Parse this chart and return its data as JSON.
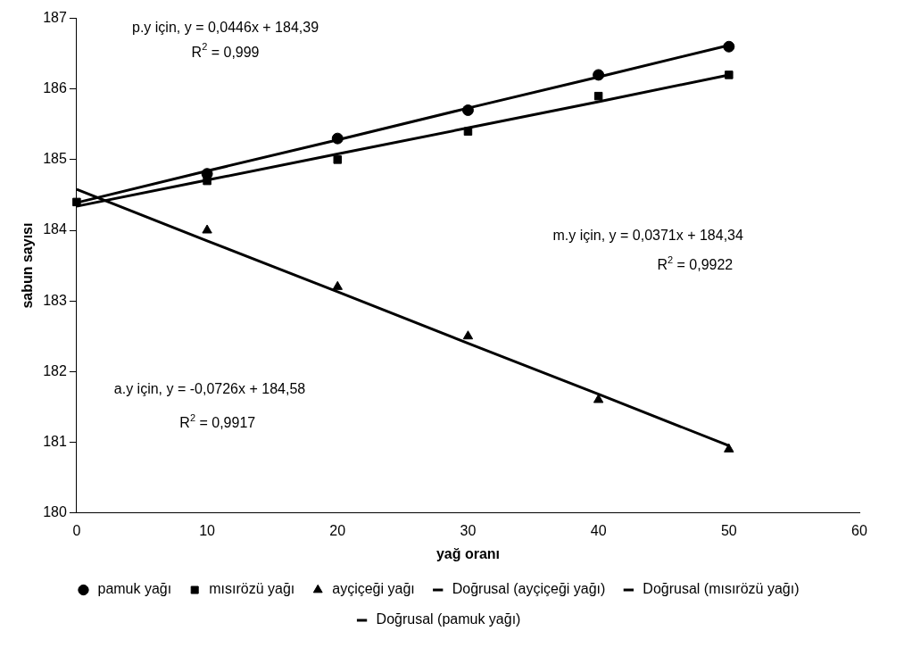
{
  "chart_data": {
    "type": "scatter",
    "xlabel": "yağ oranı",
    "ylabel": "sabun sayısı",
    "xlim": [
      0,
      60
    ],
    "xticks": [
      0,
      10,
      20,
      30,
      40,
      50,
      60
    ],
    "ylim": [
      180,
      187
    ],
    "yticks": [
      180,
      181,
      182,
      183,
      184,
      185,
      186,
      187
    ],
    "grid": false,
    "legend": "bottom",
    "x": [
      0,
      10,
      20,
      30,
      40,
      50
    ],
    "series": [
      {
        "name": "pamuk yağı",
        "color": "#000000",
        "marker": "circle",
        "values": [
          null,
          184.8,
          185.3,
          185.7,
          186.2,
          186.6
        ]
      },
      {
        "name": "mısırözü yağı",
        "color": "#000000",
        "marker": "square",
        "values": [
          184.4,
          184.7,
          185.0,
          185.4,
          185.9,
          186.2
        ]
      },
      {
        "name": "ayçiçeği yağı",
        "color": "#000000",
        "marker": "triangle",
        "values": [
          null,
          184.0,
          183.2,
          182.5,
          181.6,
          180.9
        ]
      },
      {
        "name": "Doğrusal (ayçiçeği yağı)",
        "type": "line",
        "color": "#000000",
        "marker": "none",
        "line_style": "solid",
        "values": [
          184.58,
          183.85,
          183.13,
          182.4,
          181.68,
          180.95
        ]
      },
      {
        "name": "Doğrusal (mısırözü yağı)",
        "type": "line",
        "color": "#000000",
        "marker": "none",
        "line_style": "solid",
        "values": [
          184.34,
          184.71,
          185.08,
          185.45,
          185.82,
          186.2
        ]
      },
      {
        "name": "Doğrusal (pamuk yağı)",
        "type": "line",
        "color": "#000000",
        "marker": "none",
        "line_style": "solid",
        "values": [
          184.39,
          184.84,
          185.28,
          185.73,
          186.17,
          186.62
        ]
      }
    ],
    "annotations": [
      "p.y için, y = 0,0446x + 184,39",
      "R$^{2}$ = 0,999",
      "m.y için, y = 0,0371x + 184,34",
      "R$^{2}$ = 0,9922",
      "a.y için, y = -0,0726x + 184,58",
      "R$^{2}$ = 0,9917"
    ]
  }
}
